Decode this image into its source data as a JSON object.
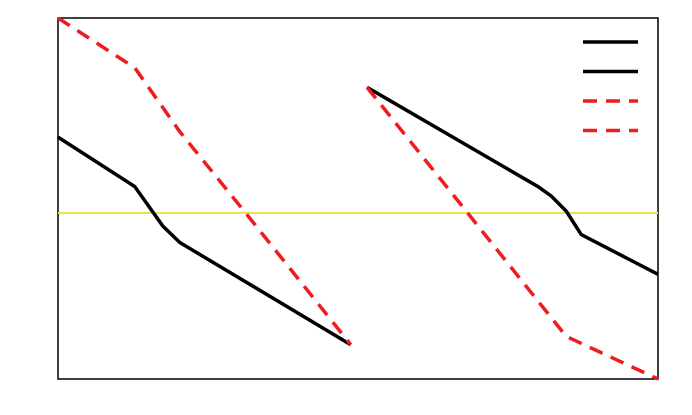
{
  "chart_data": {
    "type": "line",
    "xlim": [
      0,
      100
    ],
    "ylim": [
      0,
      100
    ],
    "grid": false,
    "ticks": false,
    "legend": {
      "placement": "top-right",
      "entries": 4
    },
    "reference_line": {
      "y": 46,
      "color": "#e8e34a"
    },
    "series": [
      {
        "color": "#000000",
        "dash": "solid",
        "segments": [
          [
            [
              0,
              67
            ],
            [
              12.8,
              53.3
            ],
            [
              15.7,
              46.5
            ],
            [
              17.5,
              42.3
            ],
            [
              20.3,
              37.8
            ],
            [
              48.8,
              9.5
            ]
          ],
          [
            [
              51.5,
              80.8
            ],
            [
              80,
              53.3
            ],
            [
              82.2,
              50.7
            ],
            [
              84.7,
              46.5
            ],
            [
              87.2,
              40
            ],
            [
              100,
              29
            ]
          ]
        ]
      },
      {
        "color": "#ee1c1c",
        "dash": "dashed",
        "segments": [
          [
            [
              0,
              100
            ],
            [
              12.8,
              86.2
            ],
            [
              20.3,
              68.5
            ],
            [
              31.5,
              45.5
            ],
            [
              48.8,
              9.5
            ]
          ],
          [
            [
              51.5,
              80.8
            ],
            [
              68.5,
              45.5
            ],
            [
              84.7,
              11.8
            ],
            [
              100,
              0
            ]
          ]
        ]
      }
    ]
  }
}
